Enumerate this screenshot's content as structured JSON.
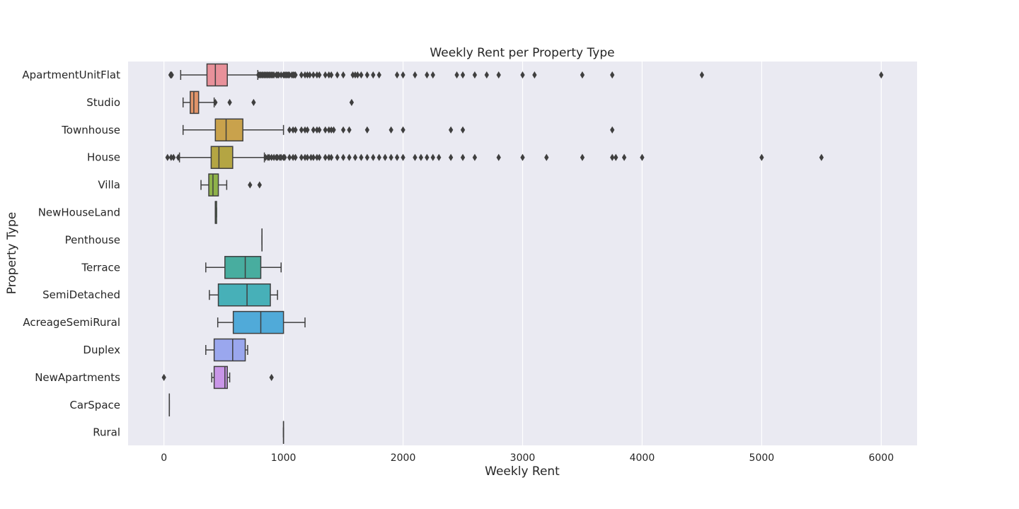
{
  "chart_data": {
    "type": "box",
    "orientation": "horizontal",
    "title": "Weekly Rent per Property Type",
    "xlabel": "Weekly Rent",
    "ylabel": "Property Type",
    "xlim": [
      -300,
      6300
    ],
    "xticks": [
      0,
      1000,
      2000,
      3000,
      4000,
      5000,
      6000
    ],
    "grid": "x-only",
    "colors": {
      "background": "#eaeaf2",
      "grid": "#ffffff",
      "line": "#3f3f3f",
      "text": "#262626"
    },
    "categories": [
      {
        "name": "ApartmentUnitFlat",
        "color": "#e8919a",
        "box": {
          "min": 140,
          "q1": 360,
          "median": 430,
          "q3": 530,
          "max": 785
        },
        "outliers": [
          55,
          60,
          65,
          790,
          800,
          810,
          820,
          830,
          840,
          850,
          860,
          870,
          880,
          890,
          900,
          910,
          920,
          940,
          950,
          960,
          980,
          1000,
          1010,
          1020,
          1030,
          1040,
          1050,
          1070,
          1080,
          1090,
          1100,
          1150,
          1180,
          1200,
          1220,
          1250,
          1280,
          1300,
          1350,
          1380,
          1400,
          1450,
          1500,
          1580,
          1600,
          1620,
          1650,
          1700,
          1750,
          1800,
          1950,
          2000,
          2100,
          2200,
          2250,
          2450,
          2500,
          2600,
          2700,
          2800,
          3000,
          3100,
          3500,
          3750,
          4500,
          6000
        ]
      },
      {
        "name": "Studio",
        "color": "#e2956a",
        "box": {
          "min": 160,
          "q1": 220,
          "median": 250,
          "q3": 290,
          "max": 420
        },
        "outliers": [
          430,
          550,
          750,
          1570
        ]
      },
      {
        "name": "Townhouse",
        "color": "#c9a24c",
        "box": {
          "min": 160,
          "q1": 430,
          "median": 520,
          "q3": 660,
          "max": 1000
        },
        "outliers": [
          1050,
          1080,
          1100,
          1150,
          1180,
          1200,
          1250,
          1280,
          1300,
          1350,
          1380,
          1400,
          1420,
          1500,
          1550,
          1700,
          1900,
          2000,
          2400,
          2500,
          3750
        ]
      },
      {
        "name": "House",
        "color": "#b4a543",
        "box": {
          "min": 130,
          "q1": 395,
          "median": 460,
          "q3": 575,
          "max": 840
        },
        "outliers": [
          30,
          60,
          80,
          120,
          850,
          870,
          880,
          900,
          920,
          940,
          950,
          970,
          980,
          1000,
          1010,
          1050,
          1080,
          1100,
          1150,
          1180,
          1200,
          1230,
          1250,
          1280,
          1300,
          1350,
          1380,
          1400,
          1450,
          1500,
          1550,
          1600,
          1650,
          1700,
          1750,
          1800,
          1850,
          1900,
          1950,
          2000,
          2100,
          2150,
          2200,
          2250,
          2300,
          2400,
          2500,
          2600,
          2800,
          3000,
          3200,
          3500,
          3750,
          3780,
          3850,
          4000,
          5000,
          5500
        ]
      },
      {
        "name": "Villa",
        "color": "#8fb24a",
        "box": {
          "min": 310,
          "q1": 375,
          "median": 410,
          "q3": 455,
          "max": 525
        },
        "outliers": [
          720,
          800
        ]
      },
      {
        "name": "NewHouseLand",
        "color": "#58b356",
        "box": {
          "min": 430,
          "q1": 430,
          "median": 430,
          "q3": 440,
          "max": 440
        },
        "outliers": []
      },
      {
        "name": "Penthouse",
        "color": "#50b282",
        "box": {
          "min": 820,
          "q1": 820,
          "median": 820,
          "q3": 820,
          "max": 820
        },
        "outliers": []
      },
      {
        "name": "Terrace",
        "color": "#48ad9f",
        "box": {
          "min": 350,
          "q1": 510,
          "median": 680,
          "q3": 810,
          "max": 980
        },
        "outliers": []
      },
      {
        "name": "SemiDetached",
        "color": "#47b0b8",
        "box": {
          "min": 380,
          "q1": 455,
          "median": 695,
          "q3": 890,
          "max": 950
        },
        "outliers": []
      },
      {
        "name": "AcreageSemiRural",
        "color": "#50aad9",
        "box": {
          "min": 450,
          "q1": 580,
          "median": 810,
          "q3": 1000,
          "max": 1180
        },
        "outliers": []
      },
      {
        "name": "Duplex",
        "color": "#9aa7ee",
        "box": {
          "min": 350,
          "q1": 420,
          "median": 575,
          "q3": 680,
          "max": 700
        },
        "outliers": []
      },
      {
        "name": "NewApartments",
        "color": "#c996e8",
        "box": {
          "min": 400,
          "q1": 420,
          "median": 510,
          "q3": 530,
          "max": 550
        },
        "outliers": [
          0,
          900
        ]
      },
      {
        "name": "CarSpace",
        "color": "#e57ee1",
        "box": {
          "min": 45,
          "q1": 45,
          "median": 45,
          "q3": 45,
          "max": 45
        },
        "outliers": []
      },
      {
        "name": "Rural",
        "color": "#ea8bbd",
        "box": {
          "min": 1000,
          "q1": 1000,
          "median": 1000,
          "q3": 1000,
          "max": 1000
        },
        "outliers": []
      }
    ]
  }
}
